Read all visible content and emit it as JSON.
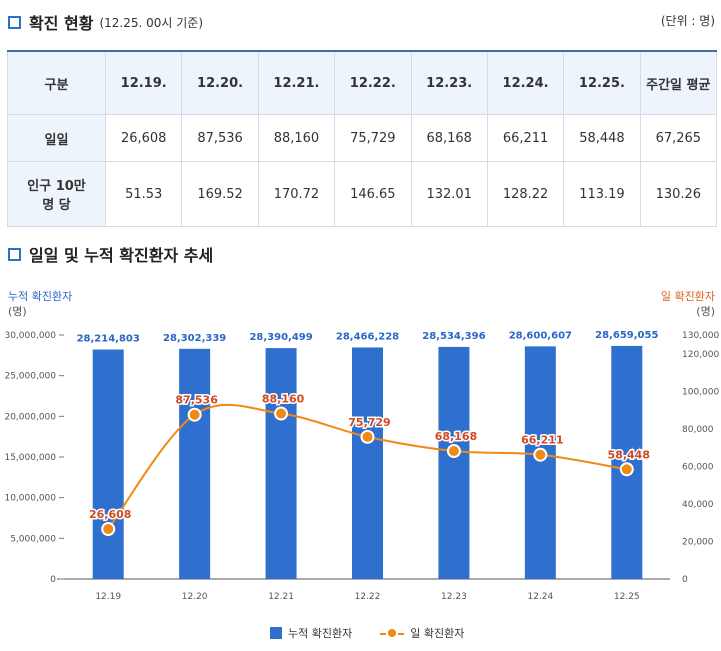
{
  "header": {
    "title": "확진 현황",
    "subtitle": "(12.25. 00시 기준)",
    "unit": "(단위 : 명)"
  },
  "table": {
    "headers": [
      "구분",
      "12.19.",
      "12.20.",
      "12.21.",
      "12.22.",
      "12.23.",
      "12.24.",
      "12.25.",
      "주간일 평균"
    ],
    "rows": [
      {
        "label": "일일",
        "values": [
          "26,608",
          "87,536",
          "88,160",
          "75,729",
          "68,168",
          "66,211",
          "58,448",
          "67,265"
        ]
      },
      {
        "label": "인구 10만 명 당",
        "values": [
          "51.53",
          "169.52",
          "170.72",
          "146.65",
          "132.01",
          "128.22",
          "113.19",
          "130.26"
        ]
      }
    ]
  },
  "section2": {
    "title": "일일 및 누적 확진환자 추세"
  },
  "axes_caption": {
    "left_title": "누적 확진환자",
    "left_unit": "(명)",
    "right_title": "일 확진환자",
    "right_unit": "(명)"
  },
  "colors": {
    "bar": "#2f6fcd",
    "line": "#f08a17",
    "bar_label": "#2a66c6",
    "line_label": "#d04a22"
  },
  "legend": {
    "bar": "누적 확진환자",
    "line": "일 확진환자"
  },
  "chart_data": {
    "type": "bar",
    "categories": [
      "12.19",
      "12.20",
      "12.21",
      "12.22",
      "12.23",
      "12.24",
      "12.25"
    ],
    "series": [
      {
        "name": "누적 확진환자",
        "type": "bar",
        "axis": "left",
        "values": [
          28214803,
          28302339,
          28390499,
          28466228,
          28534396,
          28600607,
          28659055
        ],
        "labels": [
          "28,214,803",
          "28,302,339",
          "28,390,499",
          "28,466,228",
          "28,534,396",
          "28,600,607",
          "28,659,055"
        ]
      },
      {
        "name": "일 확진환자",
        "type": "line",
        "axis": "right",
        "values": [
          26608,
          87536,
          88160,
          75729,
          68168,
          66211,
          58448
        ],
        "labels": [
          "26,608",
          "87,536",
          "88,160",
          "75,729",
          "68,168",
          "66,211",
          "58,448"
        ]
      }
    ],
    "left_axis": {
      "min": 0,
      "max": 30000000,
      "ticks": [
        0,
        5000000,
        10000000,
        15000000,
        20000000,
        25000000,
        30000000
      ],
      "tick_labels": [
        "0",
        "5,000,000",
        "10,000,000",
        "15,000,000",
        "20,000,000",
        "25,000,000",
        "30,000,000"
      ]
    },
    "right_axis": {
      "min": 0,
      "max": 130000,
      "ticks": [
        0,
        20000,
        40000,
        60000,
        80000,
        100000,
        120000,
        130000
      ],
      "tick_labels": [
        "0",
        "20,000",
        "40,000",
        "60,000",
        "80,000",
        "100,000",
        "120,000",
        "130,000"
      ]
    }
  }
}
